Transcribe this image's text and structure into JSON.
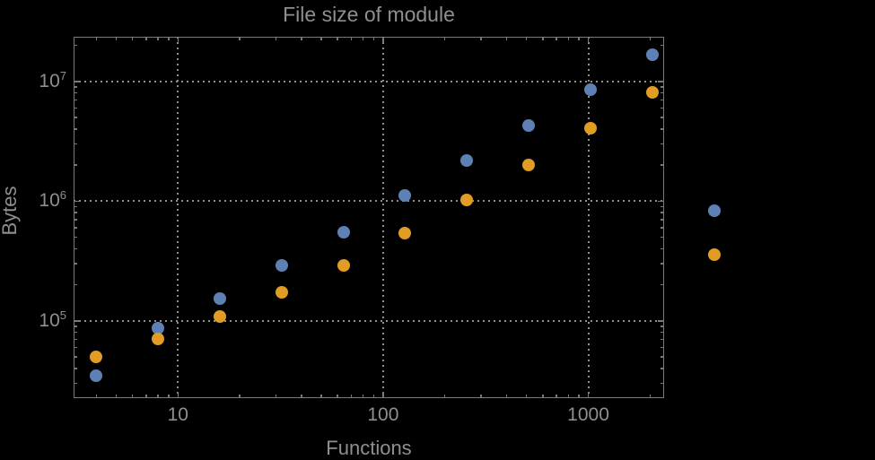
{
  "chart_data": {
    "type": "scatter",
    "title": "File size of module",
    "xlabel": "Functions",
    "ylabel": "Bytes",
    "x_scale": "log",
    "y_scale": "log",
    "xlim": [
      3.1,
      2330
    ],
    "ylim": [
      22600,
      23600000
    ],
    "grid": "dotted-lines-at-decades",
    "legend": "none",
    "marker_diameter_px": 14,
    "points_clipped_to_frame": false,
    "x": [
      4,
      8,
      16,
      32,
      64,
      128,
      256,
      512,
      1024,
      2048,
      4096
    ],
    "series": [
      {
        "name": "series-1-blue",
        "color": "#5E81B5",
        "values": [
          34500,
          87000,
          153000,
          290000,
          550000,
          1110000,
          2200000,
          4300000,
          8500000,
          16700000,
          830000
        ]
      },
      {
        "name": "series-2-orange",
        "color": "#E19C24",
        "values": [
          50000,
          71000,
          108000,
          172000,
          290000,
          540000,
          1020000,
          2000000,
          4050000,
          8100000,
          360000
        ]
      }
    ],
    "x_major_ticks": [
      10,
      100,
      1000
    ],
    "x_tick_labels": [
      "10",
      "100",
      "1000"
    ],
    "y_major_ticks": [
      100000,
      1000000,
      10000000
    ],
    "y_tick_labels": [
      {
        "base": "10",
        "exp": "5"
      },
      {
        "base": "10",
        "exp": "6"
      },
      {
        "base": "10",
        "exp": "7"
      }
    ],
    "colors": {
      "background": "#000000",
      "frame": "#7a7a7e",
      "grid": "#8f8f8f",
      "text": "#8f8f8f"
    }
  }
}
